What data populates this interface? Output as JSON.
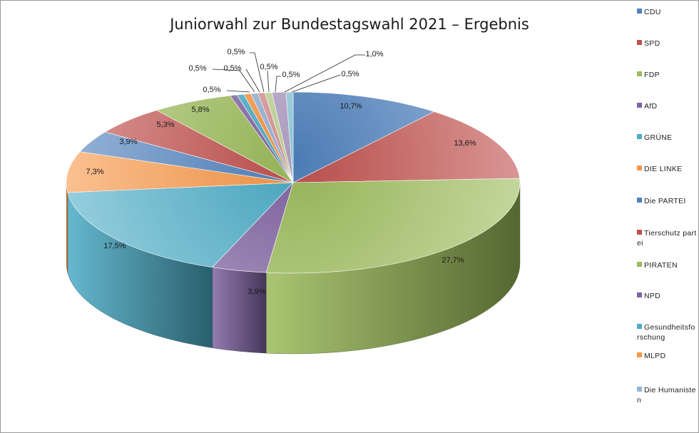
{
  "chart_data": {
    "type": "pie",
    "title": "Juniorwahl zur Bundestagswahl 2021 – Ergebnis",
    "slices": [
      {
        "name": "CDU",
        "value": 10.7,
        "label": "10,7%",
        "color": "#4f81bd"
      },
      {
        "name": "SPD",
        "value": 13.6,
        "label": "13,6%",
        "color": "#c0504d"
      },
      {
        "name": "FDP",
        "value": 27.7,
        "label": "27,7%",
        "color": "#9bbb59"
      },
      {
        "name": "AfD",
        "value": 3.9,
        "label": "3,9%",
        "color": "#8064a2"
      },
      {
        "name": "GRÜNE",
        "value": 17.5,
        "label": "17,5%",
        "color": "#4bacc6"
      },
      {
        "name": "DIE LINKE",
        "value": 7.3,
        "label": "7,3%",
        "color": "#f79646"
      },
      {
        "name": "Die PARTEI",
        "value": 3.9,
        "label": "3,9%",
        "color": "#4f81bd"
      },
      {
        "name": "Tierschutzpartei",
        "value": 5.3,
        "label": "5,3%",
        "color": "#c0504d"
      },
      {
        "name": "PIRATEN",
        "value": 5.8,
        "label": "5,8%",
        "color": "#9bbb59"
      },
      {
        "name": "NPD",
        "value": 0.5,
        "label": "0,5%",
        "color": "#8064a2"
      },
      {
        "name": "Gesundheitsforschung",
        "value": 0.5,
        "label": "0,5%",
        "color": "#4bacc6"
      },
      {
        "name": "MLPD",
        "value": 0.5,
        "label": "0,5%",
        "color": "#f79646"
      },
      {
        "name": "Die Humanisten",
        "value": 0.5,
        "label": "0,5%",
        "color": "#95b3d7"
      },
      {
        "name": "",
        "value": 0.5,
        "label": "0,5%",
        "color": "#d99694"
      },
      {
        "name": "",
        "value": 0.5,
        "label": "0,5%",
        "color": "#c3d69b"
      },
      {
        "name": "",
        "value": 1.0,
        "label": "1,0%",
        "color": "#b3a2c7"
      },
      {
        "name": "",
        "value": 0.5,
        "label": "0,5%",
        "color": "#93cddd"
      }
    ],
    "legend_position": "right",
    "legend": [
      {
        "label": "CDU",
        "color": "#4f81bd"
      },
      {
        "label": "SPD",
        "color": "#c0504d"
      },
      {
        "label": "FDP",
        "color": "#9bbb59"
      },
      {
        "label": "AfD",
        "color": "#8064a2"
      },
      {
        "label": "GRÜNE",
        "color": "#4bacc6"
      },
      {
        "label": "DIE LINKE",
        "color": "#f79646"
      },
      {
        "label": "Die PARTEI",
        "color": "#4f81bd"
      },
      {
        "label": "Tierschutz partei",
        "color": "#c0504d"
      },
      {
        "label": "PIRATEN",
        "color": "#9bbb59"
      },
      {
        "label": "NPD",
        "color": "#8064a2"
      },
      {
        "label": "Gesundheitsforschung",
        "color": "#4bacc6"
      },
      {
        "label": "MLPD",
        "color": "#f79646"
      },
      {
        "label": "Die Humanisten",
        "color": "#95b3d7"
      }
    ]
  }
}
